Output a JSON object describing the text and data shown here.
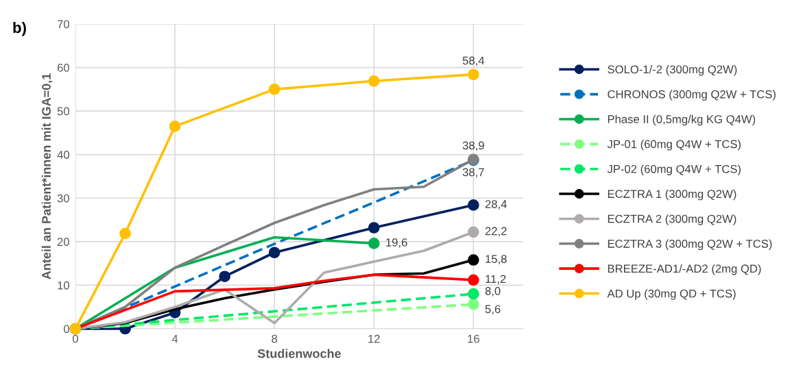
{
  "chart_data": {
    "type": "line",
    "xlabel": "Studienwoche",
    "ylabel": "Anteil an Patient*innen mit IGA=0,1",
    "annotations": [
      "b)"
    ],
    "xlim": [
      0,
      18
    ],
    "xticks": [
      0,
      4,
      8,
      12,
      16
    ],
    "ylim": [
      0,
      70
    ],
    "yticks": [
      0,
      10,
      20,
      30,
      40,
      50,
      60,
      70
    ],
    "grid": true,
    "legend": "right",
    "series": [
      {
        "name": "SOLO-1/-2 (300mg Q2W)",
        "color": "#002060",
        "line_style": "solid",
        "marker": "circle",
        "x": [
          0,
          2,
          4,
          6,
          8,
          12,
          16
        ],
        "values": [
          0,
          0,
          3.7,
          12,
          17.5,
          23.2,
          28.4
        ],
        "value_labels": [
          null,
          null,
          null,
          null,
          null,
          null,
          "28,4"
        ]
      },
      {
        "name": "CHRONOS (300mg Q2W + TCS)",
        "color": "#0070c0",
        "line_style": "dashed",
        "marker": "none",
        "x": [
          0,
          4,
          8,
          12,
          16
        ],
        "values": [
          0,
          9.7,
          19.5,
          29,
          38.7
        ]
      },
      {
        "type": "scatter",
        "color": "#0070c0",
        "marker": "circle",
        "x": [
          16
        ],
        "values": [
          38.7
        ],
        "value_labels": [
          "38,7"
        ]
      },
      {
        "name": "Phase II (0,5mg/kg KG Q4W)",
        "color": "#00b050",
        "line_style": "solid",
        "marker": "none",
        "x": [
          0,
          4,
          8,
          12
        ],
        "values": [
          0,
          14,
          21,
          19.6
        ]
      },
      {
        "type": "scatter",
        "color": "#00b050",
        "marker": "circle",
        "x": [
          12
        ],
        "values": [
          19.6
        ],
        "value_labels": [
          "19,6"
        ]
      },
      {
        "name": "JP-01 (60mg Q4W + TCS)",
        "color": "#7fff7f",
        "line_style": "dashed",
        "marker": "none",
        "x": [
          0,
          16
        ],
        "values": [
          0,
          5.6
        ]
      },
      {
        "type": "scatter",
        "color": "#7fff7f",
        "marker": "circle",
        "x": [
          16
        ],
        "values": [
          5.6
        ],
        "value_labels": [
          "5,6"
        ]
      },
      {
        "name": "JP-02 (60mg Q4W + TCS)",
        "color": "#00e868",
        "line_style": "dashed",
        "marker": "none",
        "x": [
          0,
          16
        ],
        "values": [
          0,
          8.0
        ]
      },
      {
        "type": "scatter",
        "color": "#00e868",
        "marker": "circle",
        "x": [
          16
        ],
        "values": [
          8.0
        ],
        "value_labels": [
          "8,0"
        ]
      },
      {
        "name": "ECZTRA 1 (300mg Q2W)",
        "color": "#000000",
        "line_style": "solid",
        "marker": "none",
        "x": [
          0,
          2,
          4,
          6,
          8,
          10,
          12,
          14,
          16
        ],
        "values": [
          0,
          1.3,
          4.5,
          7,
          9,
          10.8,
          12.4,
          12.7,
          15.8
        ]
      },
      {
        "type": "scatter",
        "color": "#000000",
        "marker": "circle",
        "x": [
          16
        ],
        "values": [
          15.8
        ],
        "value_labels": [
          "15,8"
        ]
      },
      {
        "name": "ECZTRA 2 (300mg Q2W)",
        "color": "#afabab",
        "line_style": "solid",
        "marker": "none",
        "x": [
          0,
          2,
          4,
          6,
          8,
          10,
          12,
          14,
          16
        ],
        "values": [
          0,
          1.5,
          5,
          9,
          1.3,
          12.9,
          15.4,
          17.9,
          22.2
        ]
      },
      {
        "type": "scatter",
        "color": "#afabab",
        "marker": "circle",
        "x": [
          16
        ],
        "values": [
          22.2
        ],
        "value_labels": [
          "22,2"
        ]
      },
      {
        "name": "ECZTRA 3 (300mg Q2W + TCS)",
        "color": "#808080",
        "line_style": "solid",
        "marker": "none",
        "x": [
          0,
          2,
          4,
          6,
          8,
          10,
          12,
          14,
          16
        ],
        "values": [
          0,
          5,
          14,
          19.2,
          24.3,
          28.4,
          32,
          32.6,
          38.9
        ]
      },
      {
        "type": "scatter",
        "color": "#808080",
        "marker": "circle",
        "x": [
          16
        ],
        "values": [
          38.9
        ],
        "value_labels": [
          "38,9"
        ]
      },
      {
        "name": "BREEZE-AD1/-AD2 (2mg QD)",
        "color": "#ff0000",
        "line_style": "solid",
        "marker": "none",
        "x": [
          0,
          4,
          8,
          10,
          12,
          16
        ],
        "values": [
          0,
          8.6,
          9.3,
          11,
          12.4,
          11.2
        ]
      },
      {
        "type": "scatter",
        "color": "#ff0000",
        "marker": "circle",
        "x": [
          16
        ],
        "values": [
          11.2
        ],
        "value_labels": [
          "11,2"
        ]
      },
      {
        "name": "AD Up (30mg QD + TCS)",
        "color": "#ffc000",
        "line_style": "solid",
        "marker": "circle",
        "x": [
          0,
          2,
          4,
          8,
          12,
          16
        ],
        "values": [
          0,
          21.9,
          46.5,
          55,
          56.9,
          58.4
        ],
        "value_labels": [
          null,
          null,
          null,
          null,
          null,
          "58,4"
        ]
      }
    ]
  }
}
